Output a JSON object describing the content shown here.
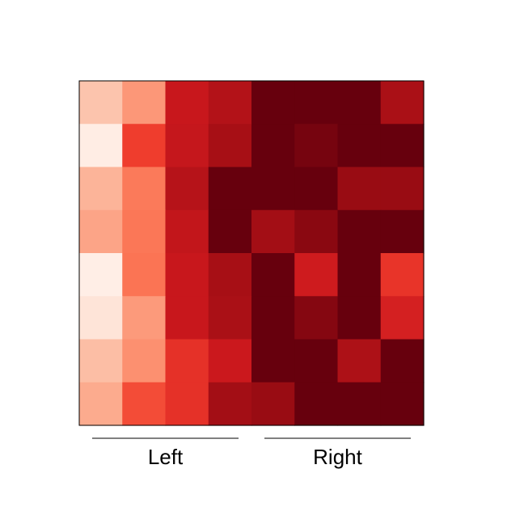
{
  "chart_data": {
    "type": "heatmap",
    "colormap": "Reds",
    "value_range": [
      0,
      1
    ],
    "rows": 8,
    "cols": 8,
    "values": [
      [
        0.22,
        0.36,
        0.76,
        0.83,
        1.0,
        1.0,
        1.0,
        0.86
      ],
      [
        0.05,
        0.62,
        0.77,
        0.87,
        1.0,
        0.97,
        1.0,
        1.0
      ],
      [
        0.27,
        0.45,
        0.82,
        1.0,
        1.0,
        1.0,
        0.9,
        0.9
      ],
      [
        0.32,
        0.46,
        0.78,
        1.0,
        0.88,
        0.93,
        1.0,
        1.0
      ],
      [
        0.04,
        0.47,
        0.76,
        0.87,
        1.0,
        0.74,
        1.0,
        0.65
      ],
      [
        0.1,
        0.35,
        0.76,
        0.86,
        1.0,
        0.94,
        1.0,
        0.72
      ],
      [
        0.24,
        0.38,
        0.66,
        0.75,
        1.0,
        1.0,
        0.85,
        1.0
      ],
      [
        0.3,
        0.58,
        0.66,
        0.88,
        0.9,
        1.0,
        1.0,
        1.0
      ]
    ],
    "group_labels": [
      {
        "label": "Left",
        "cols": [
          0,
          3
        ]
      },
      {
        "label": "Right",
        "cols": [
          4,
          7
        ]
      }
    ],
    "grid": false,
    "legend": "none"
  }
}
